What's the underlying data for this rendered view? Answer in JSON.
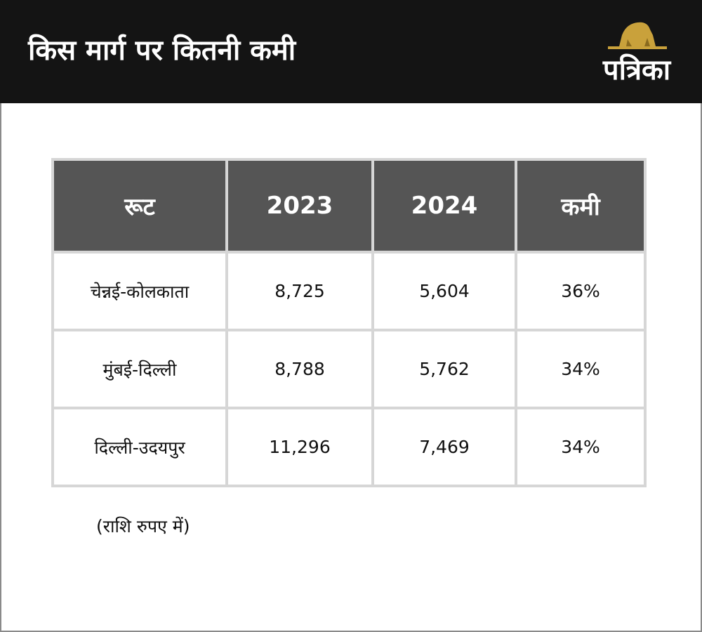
{
  "header": {
    "title": "किस मार्ग पर कितनी कमी",
    "logo": "पत्रिका"
  },
  "table": {
    "columns": [
      "रूट",
      "2023",
      "2024",
      "कमी"
    ],
    "rows": [
      [
        "चेन्नई-कोलकाता",
        "8,725",
        "5,604",
        "36%"
      ],
      [
        "मुंबई-दिल्ली",
        "8,788",
        "5,762",
        "34%"
      ],
      [
        "दिल्ली-उदयपुर",
        "11,296",
        "7,469",
        "34%"
      ]
    ]
  },
  "note": "(राशि रुपए में)"
}
